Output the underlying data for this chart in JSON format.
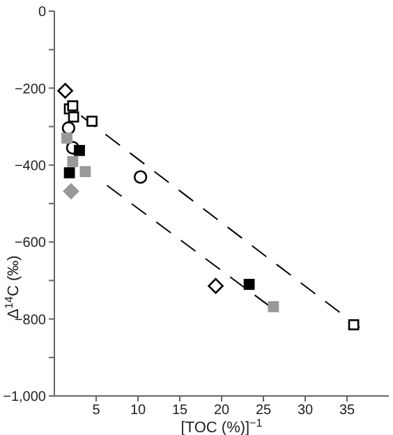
{
  "chart_data": {
    "type": "scatter",
    "xlabel": "[TOC (%)]$^{−1}$",
    "ylabel": "Δ$^{14}$C (‰)",
    "xlim": [
      0,
      40
    ],
    "xticks": [
      5,
      10,
      15,
      20,
      25,
      30,
      35
    ],
    "ylim": [
      -1000,
      0
    ],
    "yticks": [
      {
        "value": -1000,
        "label": "−1,000"
      },
      {
        "value": -900,
        "label": null
      },
      {
        "value": -800,
        "label": "−800"
      },
      {
        "value": -700,
        "label": null
      },
      {
        "value": -600,
        "label": "−600"
      },
      {
        "value": -500,
        "label": null
      },
      {
        "value": -400,
        "label": "−400"
      },
      {
        "value": -300,
        "label": null
      },
      {
        "value": -200,
        "label": "−200"
      },
      {
        "value": -100,
        "label": null
      },
      {
        "value": 0,
        "label": "0"
      }
    ],
    "grid": false,
    "legend": false,
    "series": [
      {
        "type": "line",
        "line_style": "dashed",
        "marker": "none",
        "color": "#000000",
        "x": [
          3.2,
          36.5
        ],
        "values": [
          -272,
          -822
        ]
      },
      {
        "type": "line",
        "line_style": "dashed",
        "marker": "none",
        "color": "#000000",
        "x": [
          6.3,
          26.5
        ],
        "values": [
          -453,
          -779
        ]
      },
      {
        "marker": "diamond",
        "color": "#ffffff",
        "x": [
          1.3,
          19.3
        ],
        "values": [
          -207,
          -714
        ]
      },
      {
        "marker": "square",
        "color": "#ffffff",
        "x": [
          1.8,
          2.2,
          2.3,
          4.5,
          35.8
        ],
        "values": [
          -254,
          -246,
          -275,
          -286,
          -815
        ]
      },
      {
        "marker": "circle",
        "color": "#ffffff",
        "x": [
          1.7,
          2.2,
          10.3
        ],
        "values": [
          -304,
          -355,
          -431
        ]
      },
      {
        "marker": "square",
        "color": "#000000",
        "x": [
          3.0,
          1.8,
          23.3
        ],
        "values": [
          -362,
          -420,
          -710
        ]
      },
      {
        "marker": "square",
        "color": "#999999",
        "x": [
          1.5,
          2.2,
          3.7,
          26.2
        ],
        "values": [
          -330,
          -391,
          -417,
          -768
        ]
      },
      {
        "marker": "diamond",
        "color": "#999999",
        "x": [
          2.0
        ],
        "values": [
          -468
        ]
      }
    ]
  }
}
